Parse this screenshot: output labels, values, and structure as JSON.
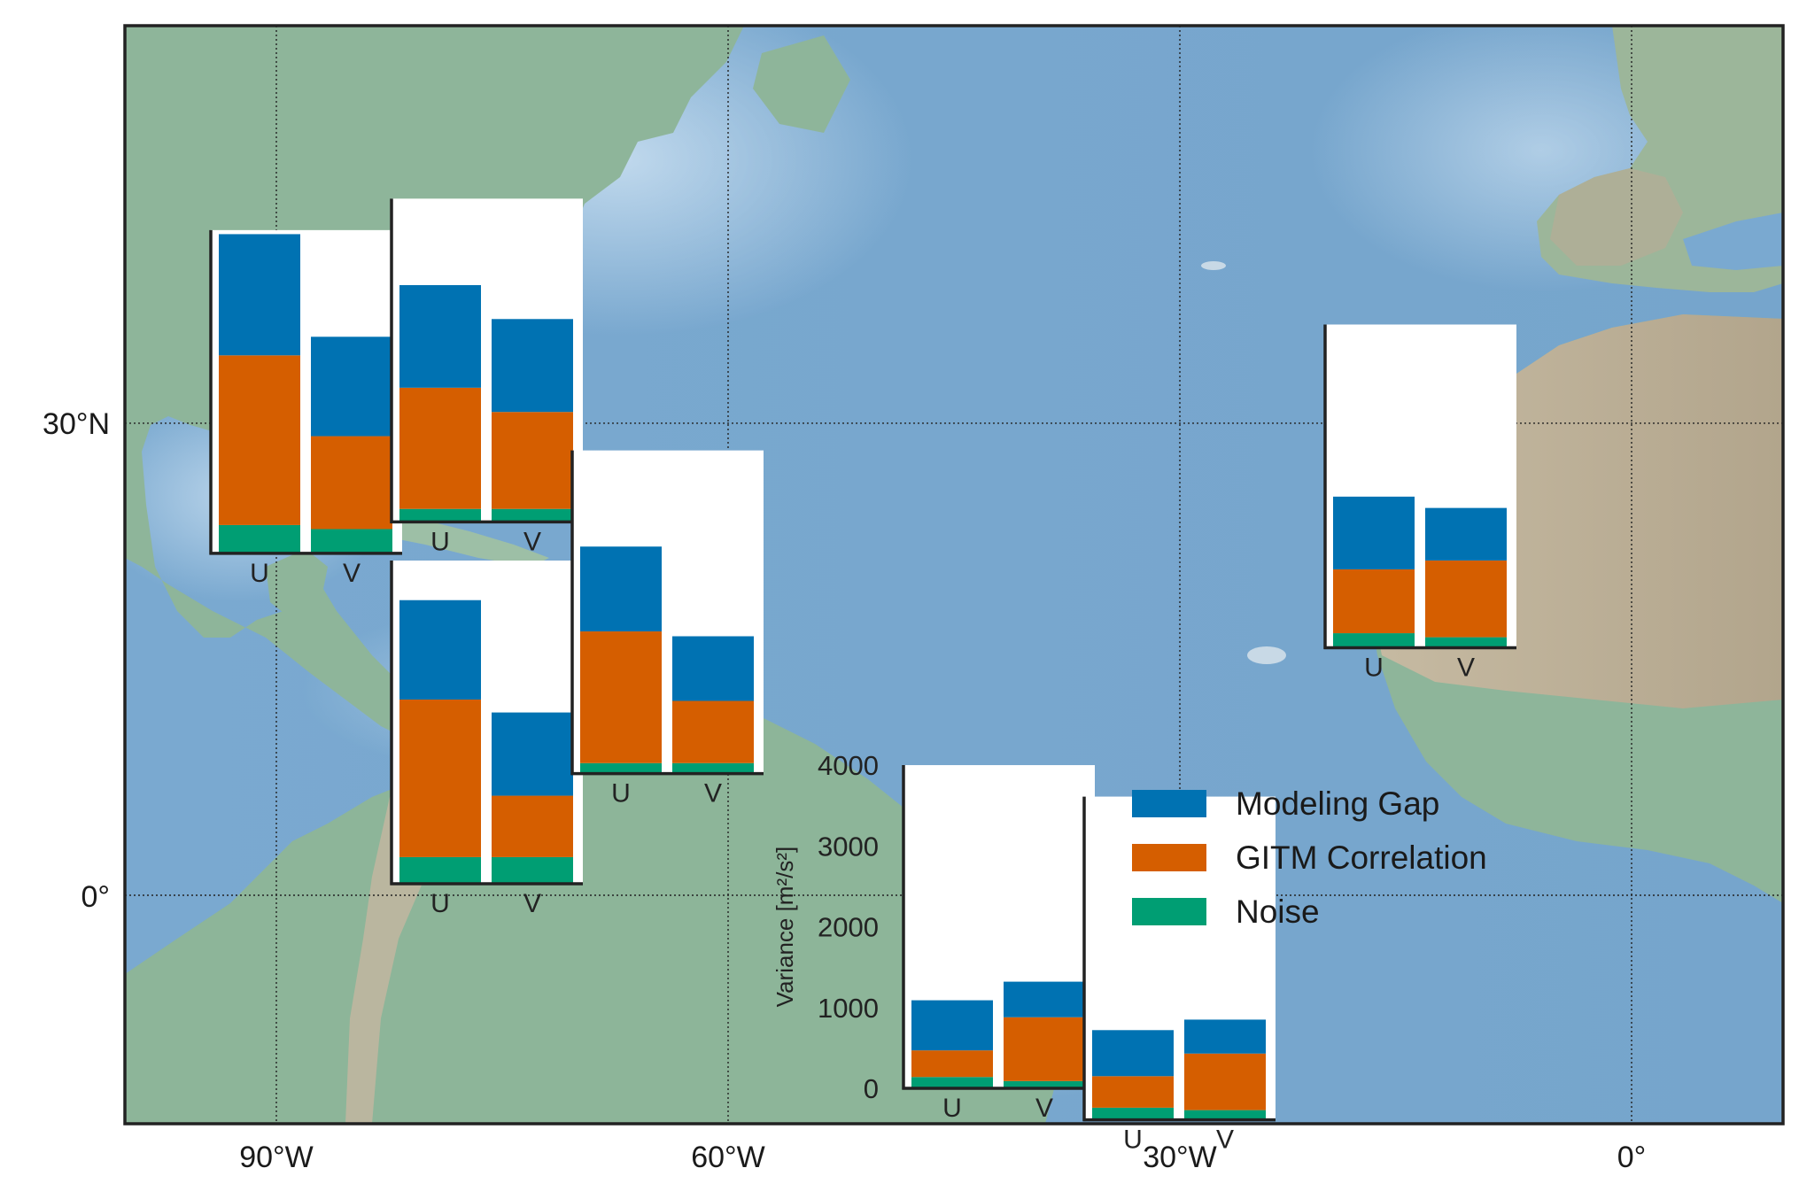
{
  "colors": {
    "modeling_gap": "#0072b2",
    "gitm_correlation": "#d55e00",
    "noise": "#009e73",
    "ocean": "#7ba9cf",
    "ocean_shallow": "#b7d3ea",
    "land": "#8fb59b",
    "desert": "#b9ad96",
    "frame": "#222222"
  },
  "map": {
    "lon_ticks": [
      "90°W",
      "60°W",
      "30°W",
      "0°"
    ],
    "lat_ticks": [
      "30°N",
      "0°"
    ]
  },
  "chart_data": {
    "type": "bar",
    "stacked": true,
    "categories": [
      "U",
      "V"
    ],
    "series_names": [
      "Noise",
      "GITM Correlation",
      "Modeling Gap"
    ],
    "ylabel": "Variance [m²/s²]",
    "ylim": [
      0,
      4000
    ],
    "yticks": [
      0,
      1000,
      2000,
      3000,
      4000
    ],
    "legend": {
      "position": "inside-lower-right",
      "entries": [
        "Modeling Gap",
        "GITM Correlation",
        "Noise"
      ]
    },
    "insets": [
      {
        "lon": -88,
        "lat": 32,
        "U": {
          "noise": 350,
          "gitm_correlation": 2100,
          "modeling_gap": 1500
        },
        "V": {
          "noise": 300,
          "gitm_correlation": 1150,
          "modeling_gap": 1230
        }
      },
      {
        "lon": -76,
        "lat": 34,
        "U": {
          "noise": 160,
          "gitm_correlation": 1500,
          "modeling_gap": 1270
        },
        "V": {
          "noise": 160,
          "gitm_correlation": 1200,
          "modeling_gap": 1150
        }
      },
      {
        "lon": -76,
        "lat": 11,
        "U": {
          "noise": 330,
          "gitm_correlation": 1950,
          "modeling_gap": 1230
        },
        "V": {
          "noise": 330,
          "gitm_correlation": 760,
          "modeling_gap": 1030
        }
      },
      {
        "lon": -64,
        "lat": 18,
        "U": {
          "noise": 130,
          "gitm_correlation": 1630,
          "modeling_gap": 1050
        },
        "V": {
          "noise": 130,
          "gitm_correlation": 770,
          "modeling_gap": 800
        }
      },
      {
        "lon": -14,
        "lat": 26,
        "U": {
          "noise": 180,
          "gitm_correlation": 790,
          "modeling_gap": 900
        },
        "V": {
          "noise": 130,
          "gitm_correlation": 950,
          "modeling_gap": 650
        }
      },
      {
        "lon": -42,
        "lat": -2,
        "U": {
          "noise": 140,
          "gitm_correlation": 330,
          "modeling_gap": 620
        },
        "V": {
          "noise": 90,
          "gitm_correlation": 790,
          "modeling_gap": 440
        }
      },
      {
        "lon": -30,
        "lat": -4,
        "U": {
          "noise": 150,
          "gitm_correlation": 390,
          "modeling_gap": 570
        },
        "V": {
          "noise": 120,
          "gitm_correlation": 700,
          "modeling_gap": 420
        }
      }
    ]
  }
}
